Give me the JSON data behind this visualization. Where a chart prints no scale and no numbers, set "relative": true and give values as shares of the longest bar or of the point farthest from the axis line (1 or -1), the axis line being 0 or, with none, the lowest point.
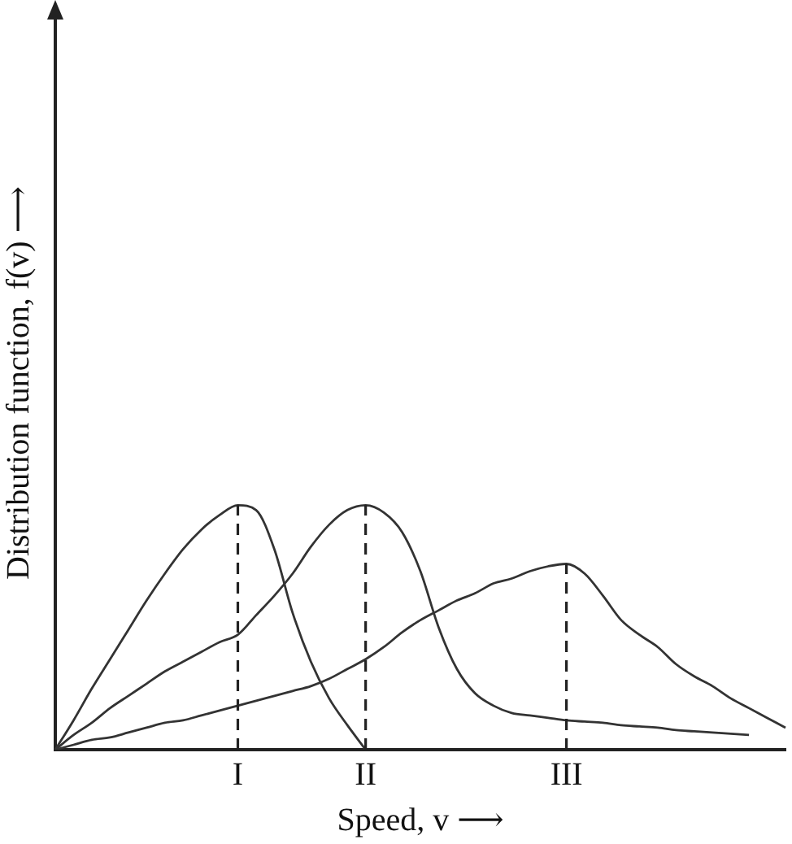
{
  "chart_data": {
    "type": "line",
    "relative": true,
    "xlabel": "Speed, v ⟶",
    "ylabel": "Distribution function, f(v) ⟶",
    "grid": false,
    "legend": false,
    "marker": "none",
    "line_style": "solid",
    "categories": [
      null,
      null,
      null,
      null,
      null,
      null,
      null,
      null,
      null,
      null,
      "I",
      null,
      null,
      null,
      null,
      null,
      null,
      "II",
      null,
      null,
      null,
      null,
      null,
      null,
      null,
      null,
      null,
      null,
      "III",
      null,
      null,
      null,
      null,
      null,
      null,
      null,
      null,
      null,
      null,
      null,
      null
    ],
    "series": [
      {
        "color": "#333333",
        "values": [
          0,
          0.12,
          0.25,
          0.37,
          0.49,
          0.61,
          0.72,
          0.82,
          0.9,
          0.96,
          1,
          0.98,
          0.82,
          0.56,
          0.36,
          0.21,
          0.1,
          0,
          null,
          null,
          null,
          null,
          null,
          null,
          null,
          null,
          null,
          null,
          null,
          null,
          null,
          null,
          null,
          null,
          null,
          null,
          null,
          null,
          null,
          null,
          null
        ]
      },
      {
        "color": "#333333",
        "values": [
          0,
          0.06,
          0.11,
          0.17,
          0.22,
          0.27,
          0.32,
          0.36,
          0.4,
          0.44,
          0.47,
          0.55,
          0.63,
          0.72,
          0.83,
          0.92,
          0.98,
          1,
          0.97,
          0.89,
          0.73,
          0.5,
          0.33,
          0.23,
          0.18,
          0.15,
          0.14,
          0.13,
          0.12,
          0.115,
          0.11,
          0.1,
          0.095,
          0.09,
          0.08,
          0.075,
          0.07,
          0.065,
          0.06,
          null,
          null
        ]
      },
      {
        "color": "#333333",
        "values": [
          0,
          0.02,
          0.04,
          0.05,
          0.07,
          0.09,
          0.11,
          0.12,
          0.14,
          0.16,
          0.18,
          0.2,
          0.22,
          0.24,
          0.26,
          0.29,
          0.33,
          0.37,
          0.42,
          0.48,
          0.53,
          0.57,
          0.61,
          0.64,
          0.68,
          0.7,
          0.73,
          0.75,
          0.76,
          0.72,
          0.63,
          0.53,
          0.47,
          0.42,
          0.35,
          0.3,
          0.26,
          0.21,
          0.17,
          0.13,
          0.09
        ]
      }
    ],
    "ref_lines": [
      {
        "axis": "x",
        "value": "I",
        "color": "#222222",
        "line_style": "dashed"
      },
      {
        "axis": "x",
        "value": "II",
        "color": "#222222",
        "line_style": "dashed"
      },
      {
        "axis": "x",
        "value": "III",
        "color": "#222222",
        "line_style": "dashed"
      }
    ]
  }
}
